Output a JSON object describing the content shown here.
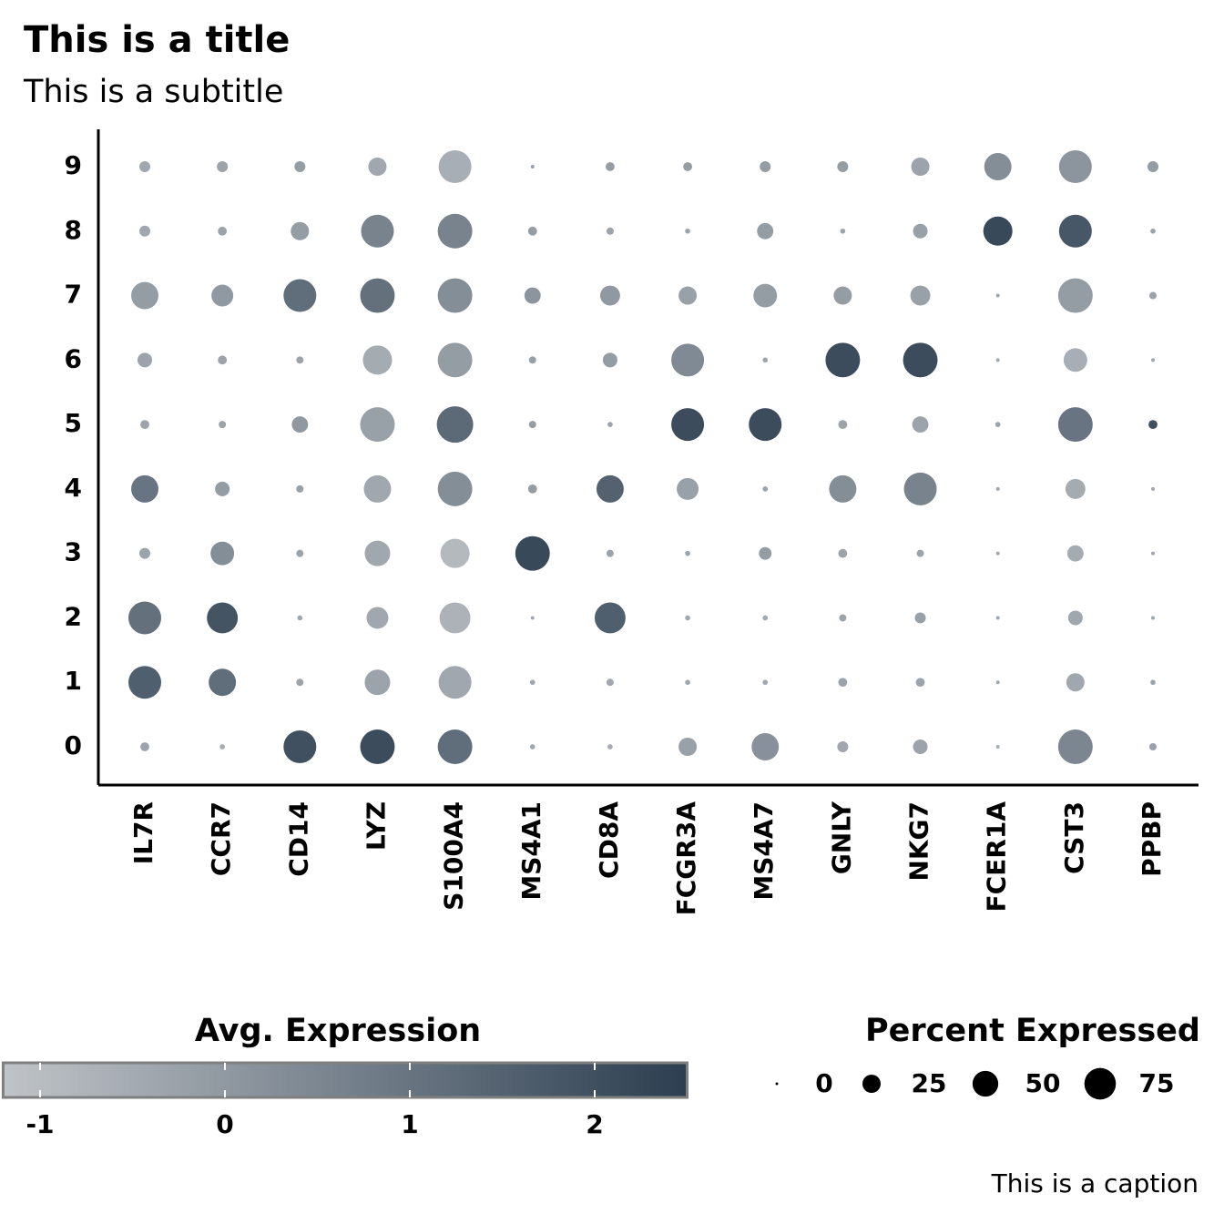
{
  "chart_data": {
    "type": "dot",
    "title": "This is a title",
    "subtitle": "This is a subtitle",
    "caption": "This is a caption",
    "categories": [
      "IL7R",
      "CCR7",
      "CD14",
      "LYZ",
      "S100A4",
      "MS4A1",
      "CD8A",
      "FCGR3A",
      "MS4A7",
      "GNLY",
      "NKG7",
      "FCER1A",
      "CST3",
      "PPBP"
    ],
    "rows": [
      "0",
      "1",
      "2",
      "3",
      "4",
      "5",
      "6",
      "7",
      "8",
      "9"
    ],
    "percent": [
      [
        6,
        2,
        81,
        90,
        90,
        2,
        2,
        25,
        56,
        9,
        16,
        1,
        90,
        4
      ],
      [
        81,
        56,
        4,
        49,
        81,
        2,
        4,
        2,
        2,
        6,
        6,
        1,
        25,
        2
      ],
      [
        81,
        72,
        2,
        36,
        72,
        1,
        72,
        2,
        2,
        4,
        9,
        1,
        16,
        1
      ],
      [
        9,
        42,
        4,
        49,
        64,
        90,
        4,
        2,
        12,
        6,
        4,
        1,
        20,
        1
      ],
      [
        56,
        16,
        4,
        56,
        90,
        6,
        56,
        36,
        2,
        56,
        81,
        1,
        30,
        1
      ],
      [
        6,
        4,
        20,
        90,
        100,
        4,
        2,
        81,
        81,
        6,
        20,
        2,
        90,
        6
      ],
      [
        16,
        6,
        4,
        64,
        90,
        4,
        16,
        81,
        2,
        90,
        90,
        1,
        42,
        1
      ],
      [
        56,
        36,
        81,
        90,
        90,
        20,
        30,
        25,
        42,
        25,
        30,
        1,
        90,
        4
      ],
      [
        9,
        6,
        25,
        81,
        90,
        6,
        4,
        2,
        20,
        2,
        16,
        64,
        81,
        2
      ],
      [
        9,
        9,
        9,
        25,
        81,
        1,
        6,
        6,
        9,
        9,
        25,
        56,
        81,
        9
      ]
    ],
    "expression": [
      [
        -0.3,
        -0.5,
        2.0,
        2.1,
        1.2,
        -0.4,
        -0.5,
        -0.2,
        0.2,
        -0.4,
        -0.3,
        -0.5,
        0.5,
        -0.2
      ],
      [
        1.6,
        1.2,
        -0.3,
        -0.3,
        -0.4,
        -0.4,
        -0.4,
        -0.4,
        -0.4,
        -0.3,
        -0.3,
        -0.4,
        -0.4,
        -0.3
      ],
      [
        1.1,
        1.9,
        -0.4,
        -0.4,
        -0.7,
        -0.4,
        1.6,
        -0.4,
        -0.4,
        -0.3,
        -0.2,
        -0.4,
        -0.4,
        -0.4
      ],
      [
        -0.3,
        0.3,
        -0.3,
        -0.4,
        -0.9,
        2.2,
        -0.3,
        -0.3,
        -0.1,
        -0.3,
        -0.3,
        -0.4,
        -0.5,
        -0.4
      ],
      [
        1.0,
        -0.1,
        -0.2,
        -0.4,
        0.3,
        -0.1,
        1.5,
        -0.2,
        -0.3,
        0.3,
        0.6,
        -0.4,
        -0.5,
        -0.4
      ],
      [
        -0.3,
        -0.3,
        0,
        -0.2,
        1.3,
        -0.1,
        -0.3,
        2.1,
        2.1,
        -0.3,
        -0.3,
        -0.3,
        1.0,
        2.0
      ],
      [
        -0.3,
        -0.3,
        -0.3,
        -0.5,
        -0.1,
        -0.2,
        -0.1,
        0.4,
        -0.3,
        2.1,
        2.1,
        -0.4,
        -0.6,
        -0.4
      ],
      [
        -0.1,
        0,
        1.2,
        1.1,
        0.3,
        0.1,
        0,
        -0.2,
        -0.1,
        -0.1,
        -0.2,
        -0.4,
        -0.1,
        -0.3
      ],
      [
        -0.4,
        -0.3,
        -0.1,
        0.6,
        0.6,
        -0.1,
        -0.3,
        -0.3,
        -0.1,
        -0.3,
        -0.2,
        2.2,
        1.8,
        -0.3
      ],
      [
        -0.4,
        -0.3,
        -0.1,
        -0.4,
        -0.6,
        -0.2,
        -0.1,
        -0.1,
        -0.1,
        -0.1,
        -0.3,
        0.3,
        0.1,
        -0.1
      ]
    ],
    "color_title": "Avg. Expression",
    "color_lim": [
      -1.2,
      2.5
    ],
    "color_ticks": [
      -1,
      0,
      1,
      2
    ],
    "colors": [
      "#c0c4c8",
      "#2c3e50"
    ],
    "size_title": "Percent Expressed",
    "size_lim": [
      0,
      100
    ],
    "size_ticks": [
      0,
      25,
      50,
      75
    ]
  }
}
